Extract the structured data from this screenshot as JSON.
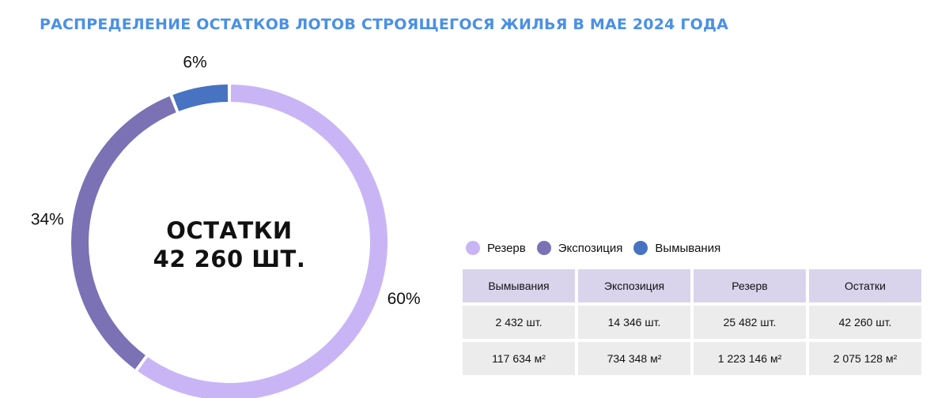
{
  "title": "РАСПРЕДЕЛЕНИЕ ОСТАТКОВ ЛОТОВ СТРОЯЩЕГОСЯ ЖИЛЬЯ В МАЕ 2024 ГОДА",
  "center": {
    "line1": "ОСТАТКИ",
    "line2": "42 260 ШТ."
  },
  "chart_data": {
    "type": "pie",
    "variant": "donut",
    "slices": [
      {
        "name": "Резерв",
        "value": 60,
        "label": "60%",
        "color": "#c9b5f5"
      },
      {
        "name": "Экспозиция",
        "value": 34,
        "label": "34%",
        "color": "#7a72b4"
      },
      {
        "name": "Вымывания",
        "value": 6,
        "label": "6%",
        "color": "#4773c2"
      }
    ],
    "legend_placement": "below-right"
  },
  "legend": [
    {
      "label": "Резерв",
      "color": "#c9b5f5"
    },
    {
      "label": "Экспозиция",
      "color": "#7a72b4"
    },
    {
      "label": "Вымывания",
      "color": "#4773c2"
    }
  ],
  "table": {
    "headers": [
      "Вымывания",
      "Экспозиция",
      "Резерв",
      "Остатки"
    ],
    "rows": [
      [
        "2 432 шт.",
        "14 346 шт.",
        "25 482 шт.",
        "42 260 шт."
      ],
      [
        "117 634 м²",
        "734 348 м²",
        "1 223 146 м²",
        "2 075 128 м²"
      ]
    ]
  }
}
